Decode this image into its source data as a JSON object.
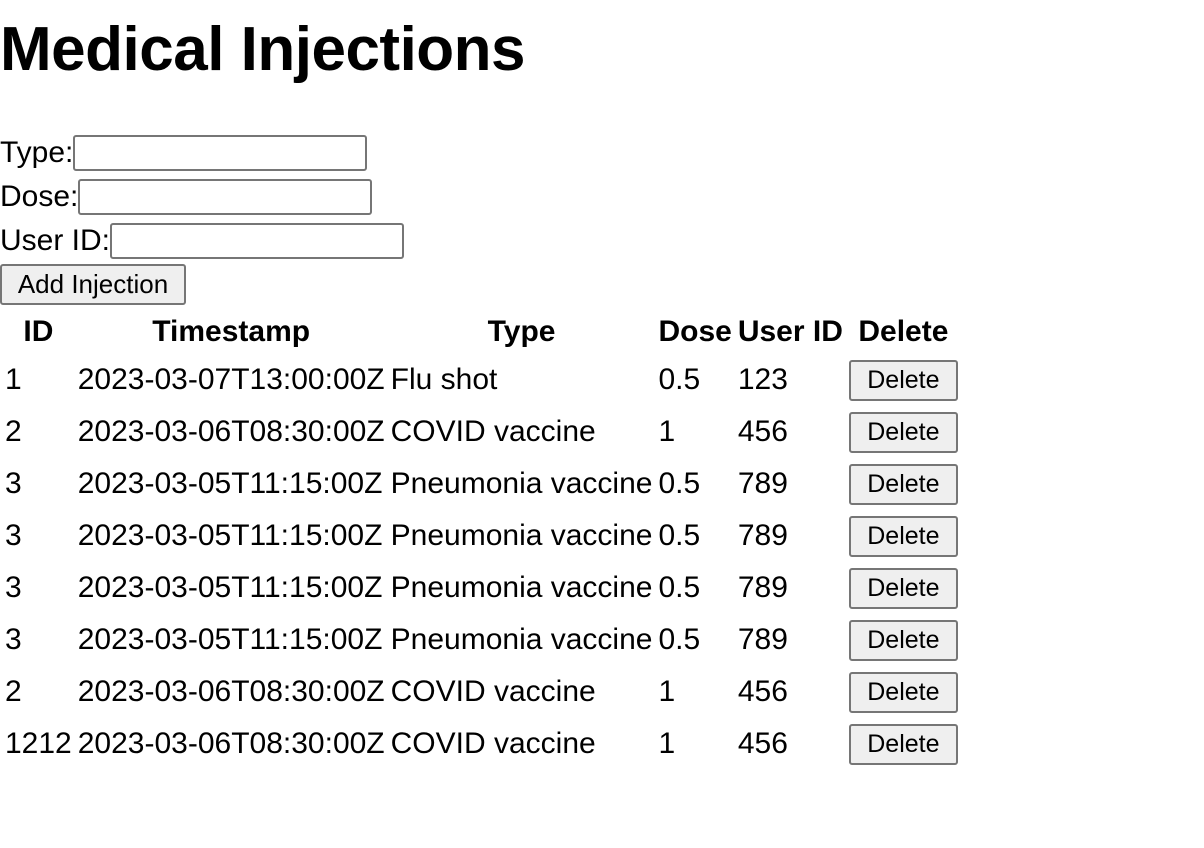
{
  "page": {
    "title": "Medical Injections"
  },
  "form": {
    "type_label": "Type:",
    "type_value": "",
    "dose_label": "Dose:",
    "dose_value": "",
    "user_id_label": "User ID:",
    "user_id_value": "",
    "add_button_label": "Add Injection"
  },
  "table": {
    "headers": [
      "ID",
      "Timestamp",
      "Type",
      "Dose",
      "User ID",
      "Delete"
    ],
    "delete_button_label": "Delete",
    "rows": [
      {
        "id": "1",
        "timestamp": "2023-03-07T13:00:00Z",
        "type": "Flu shot",
        "dose": "0.5",
        "user_id": "123"
      },
      {
        "id": "2",
        "timestamp": "2023-03-06T08:30:00Z",
        "type": "COVID vaccine",
        "dose": "1",
        "user_id": "456"
      },
      {
        "id": "3",
        "timestamp": "2023-03-05T11:15:00Z",
        "type": "Pneumonia vaccine",
        "dose": "0.5",
        "user_id": "789"
      },
      {
        "id": "3",
        "timestamp": "2023-03-05T11:15:00Z",
        "type": "Pneumonia vaccine",
        "dose": "0.5",
        "user_id": "789"
      },
      {
        "id": "3",
        "timestamp": "2023-03-05T11:15:00Z",
        "type": "Pneumonia vaccine",
        "dose": "0.5",
        "user_id": "789"
      },
      {
        "id": "3",
        "timestamp": "2023-03-05T11:15:00Z",
        "type": "Pneumonia vaccine",
        "dose": "0.5",
        "user_id": "789"
      },
      {
        "id": "2",
        "timestamp": "2023-03-06T08:30:00Z",
        "type": "COVID vaccine",
        "dose": "1",
        "user_id": "456"
      },
      {
        "id": "1212",
        "timestamp": "2023-03-06T08:30:00Z",
        "type": "COVID vaccine",
        "dose": "1",
        "user_id": "456"
      }
    ]
  }
}
